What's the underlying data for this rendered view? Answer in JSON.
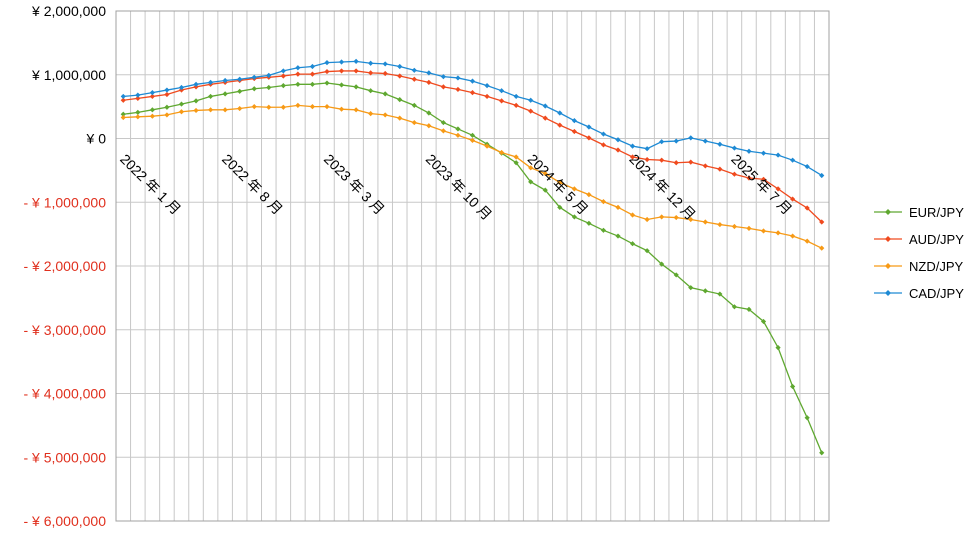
{
  "chart_data": {
    "type": "line",
    "y_tick_labels": [
      "¥ 2,000,000",
      "¥ 1,000,000",
      "¥ 0",
      "- ¥ 1,000,000",
      "- ¥ 2,000,000",
      "- ¥ 3,000,000",
      "- ¥ 4,000,000",
      "- ¥ 5,000,000",
      "- ¥ 6,000,000"
    ],
    "y_ticks": [
      2000000,
      1000000,
      0,
      -1000000,
      -2000000,
      -3000000,
      -4000000,
      -5000000,
      -6000000
    ],
    "ylim": [
      -6000000,
      2000000
    ],
    "x_tick_labels": [
      "2022 年 1 月",
      "2022 年 8 月",
      "2023 年 3 月",
      "2023 年 10 月",
      "2024 年 5 月",
      "2024 年 12 月",
      "2025 年 7 月"
    ],
    "x_tick_index": [
      0,
      7,
      14,
      21,
      28,
      35,
      42
    ],
    "grid": true,
    "legend_position": "right",
    "negative_label_color": "#e0301e",
    "series": [
      {
        "name": "EUR/JPY",
        "color": "#5fa830",
        "values": [
          380000,
          410000,
          450000,
          490000,
          540000,
          590000,
          660000,
          700000,
          740000,
          780000,
          800000,
          830000,
          850000,
          850000,
          870000,
          840000,
          810000,
          750000,
          700000,
          610000,
          520000,
          400000,
          250000,
          150000,
          50000,
          -90000,
          -230000,
          -380000,
          -680000,
          -810000,
          -1080000,
          -1230000,
          -1330000,
          -1440000,
          -1530000,
          -1650000,
          -1760000,
          -1970000,
          -2140000,
          -2340000,
          -2390000,
          -2440000,
          -2640000,
          -2680000,
          -2870000,
          -3280000,
          -3890000,
          -4380000,
          -4930000
        ]
      },
      {
        "name": "AUD/JPY",
        "color": "#f04a1e",
        "values": [
          600000,
          630000,
          660000,
          690000,
          760000,
          810000,
          850000,
          880000,
          910000,
          940000,
          960000,
          980000,
          1010000,
          1010000,
          1050000,
          1060000,
          1060000,
          1030000,
          1020000,
          980000,
          930000,
          880000,
          810000,
          770000,
          720000,
          660000,
          590000,
          520000,
          430000,
          320000,
          210000,
          110000,
          10000,
          -100000,
          -180000,
          -290000,
          -330000,
          -340000,
          -380000,
          -370000,
          -430000,
          -480000,
          -560000,
          -620000,
          -640000,
          -790000,
          -950000,
          -1090000,
          -1310000
        ]
      },
      {
        "name": "NZD/JPY",
        "color": "#f79a16",
        "values": [
          330000,
          340000,
          350000,
          370000,
          420000,
          440000,
          450000,
          450000,
          470000,
          500000,
          490000,
          490000,
          520000,
          500000,
          500000,
          460000,
          450000,
          390000,
          370000,
          320000,
          250000,
          200000,
          120000,
          50000,
          -30000,
          -120000,
          -220000,
          -290000,
          -460000,
          -550000,
          -690000,
          -790000,
          -880000,
          -990000,
          -1080000,
          -1200000,
          -1270000,
          -1230000,
          -1240000,
          -1270000,
          -1310000,
          -1350000,
          -1380000,
          -1410000,
          -1450000,
          -1480000,
          -1530000,
          -1610000,
          -1720000
        ]
      },
      {
        "name": "CAD/JPY",
        "color": "#1e8ad4",
        "values": [
          660000,
          680000,
          720000,
          760000,
          800000,
          850000,
          880000,
          910000,
          930000,
          960000,
          990000,
          1060000,
          1110000,
          1130000,
          1190000,
          1200000,
          1210000,
          1180000,
          1170000,
          1130000,
          1070000,
          1030000,
          970000,
          950000,
          900000,
          830000,
          750000,
          660000,
          600000,
          510000,
          400000,
          280000,
          180000,
          70000,
          -20000,
          -120000,
          -160000,
          -50000,
          -40000,
          10000,
          -40000,
          -90000,
          -150000,
          -200000,
          -230000,
          -260000,
          -340000,
          -440000,
          -580000
        ]
      }
    ]
  }
}
